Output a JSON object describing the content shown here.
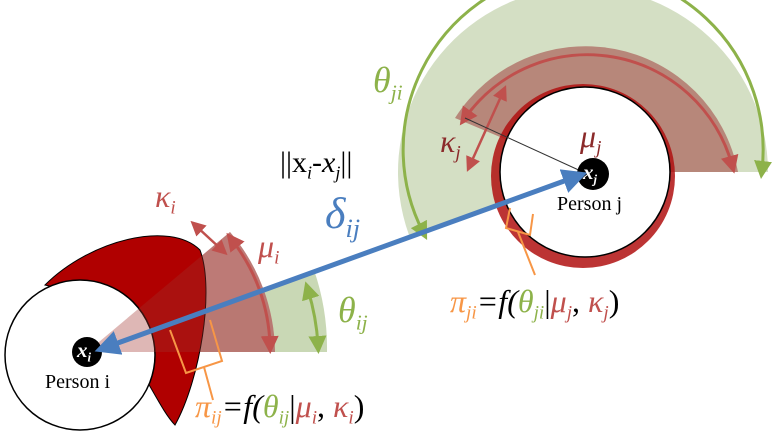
{
  "colors": {
    "green": "#8db24a",
    "red": "#c0504d",
    "darkred": "#b01010",
    "blue": "#4a7ebf",
    "orange": "#f79646",
    "black": "#000000"
  },
  "labels": {
    "person_i": "Person i",
    "person_j": "Person j",
    "xi": "x",
    "xi_sub": "i",
    "xj": "x",
    "xj_sub": "j",
    "distance": "||x",
    "distance_sub_i": "i",
    "distance_mid": "-x",
    "distance_sub_j": "j",
    "distance_end": "||",
    "delta": "δ",
    "delta_sub": "ij",
    "kappa": "κ",
    "mu": "μ",
    "theta": "θ",
    "pi": "π",
    "sub_i": "i",
    "sub_j": "j",
    "sub_ij": "ij",
    "sub_ji": "ji",
    "f_open": "=f(",
    "bar": "|",
    "comma": ", ",
    "close": ")"
  }
}
